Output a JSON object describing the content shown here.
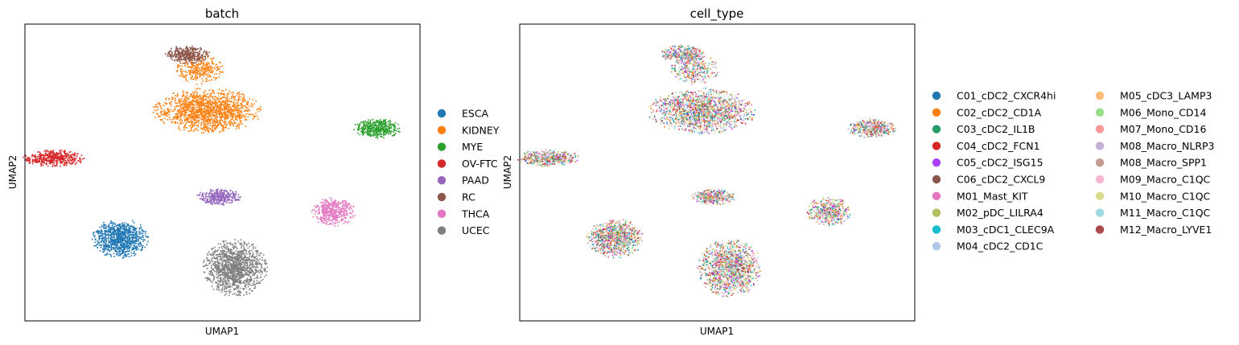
{
  "chart_data": [
    {
      "type": "scatter",
      "title": "batch",
      "xlabel": "UMAP1",
      "ylabel": "UMAP2",
      "xlim": [
        0,
        100
      ],
      "ylim": [
        0,
        100
      ],
      "grid": false,
      "legend_placement": "right",
      "series": [
        {
          "name": "ESCA",
          "color": "#1f77b4",
          "clusters": [
            {
              "cx": 24,
              "cy": 28,
              "rx": 7.0,
              "ry": 6.5,
              "n": 900
            }
          ]
        },
        {
          "name": "KIDNEY",
          "color": "#ff7f0e",
          "clusters": [
            {
              "cx": 46,
              "cy": 71,
              "rx": 13.5,
              "ry": 7.5,
              "n": 1500
            },
            {
              "cx": 44,
              "cy": 85,
              "rx": 6.0,
              "ry": 5.0,
              "n": 300
            }
          ]
        },
        {
          "name": "MYE",
          "color": "#2ca02c",
          "clusters": [
            {
              "cx": 89,
              "cy": 65,
              "rx": 6.0,
              "ry": 3.2,
              "n": 450
            }
          ]
        },
        {
          "name": "OV-FTC",
          "color": "#d62728",
          "clusters": [
            {
              "cx": 7,
              "cy": 55,
              "rx": 8.0,
              "ry": 2.8,
              "n": 450
            }
          ]
        },
        {
          "name": "PAAD",
          "color": "#9467bd",
          "clusters": [
            {
              "cx": 49,
              "cy": 42,
              "rx": 5.5,
              "ry": 2.7,
              "n": 350
            }
          ]
        },
        {
          "name": "RC",
          "color": "#8c564b",
          "clusters": [
            {
              "cx": 41,
              "cy": 90,
              "rx": 5.5,
              "ry": 3.0,
              "n": 350
            }
          ]
        },
        {
          "name": "THCA",
          "color": "#e377c2",
          "clusters": [
            {
              "cx": 78,
              "cy": 37,
              "rx": 5.5,
              "ry": 4.8,
              "n": 450
            }
          ]
        },
        {
          "name": "UCEC",
          "color": "#7f7f7f",
          "clusters": [
            {
              "cx": 53,
              "cy": 18,
              "rx": 8.0,
              "ry": 9.5,
              "n": 1300
            }
          ]
        }
      ]
    },
    {
      "type": "scatter",
      "title": "cell_type",
      "xlabel": "UMAP1",
      "ylabel": "UMAP2",
      "xlim": [
        0,
        100
      ],
      "ylim": [
        0,
        100
      ],
      "grid": false,
      "legend_placement": "right",
      "legend_columns": 2,
      "series": [
        {
          "name": "C01_cDC2_CXCR4hi",
          "color": "#1f77b4"
        },
        {
          "name": "C02_cDC2_CD1A",
          "color": "#ff7f0e"
        },
        {
          "name": "C03_cDC2_IL1B",
          "color": "#279e68"
        },
        {
          "name": "C04_cDC2_FCN1",
          "color": "#d62728"
        },
        {
          "name": "C05_cDC2_ISG15",
          "color": "#aa40fc"
        },
        {
          "name": "C06_cDC2_CXCL9",
          "color": "#8c564b"
        },
        {
          "name": "M01_Mast_KIT",
          "color": "#e377c2"
        },
        {
          "name": "M02_pDC_LILRA4",
          "color": "#b5bd61"
        },
        {
          "name": "M03_cDC1_CLEC9A",
          "color": "#17becf"
        },
        {
          "name": "M04_cDC2_CD1C",
          "color": "#aec7e8"
        },
        {
          "name": "M05_cDC3_LAMP3",
          "color": "#ffbb78"
        },
        {
          "name": "M06_Mono_CD14",
          "color": "#98df8a"
        },
        {
          "name": "M07_Mono_CD16",
          "color": "#ff9896"
        },
        {
          "name": "M08_Macro_NLRP3",
          "color": "#c5b0d5"
        },
        {
          "name": "M08_Macro_SPP1",
          "color": "#c49c94"
        },
        {
          "name": "M09_Macro_C1QC",
          "color": "#f7b6d2"
        },
        {
          "name": "M10_Macro_C1QC",
          "color": "#dbdb8d"
        },
        {
          "name": "M11_Macro_C1QC",
          "color": "#9edae5"
        },
        {
          "name": "M12_Macro_LYVE1",
          "color": "#ad494a"
        }
      ]
    }
  ]
}
